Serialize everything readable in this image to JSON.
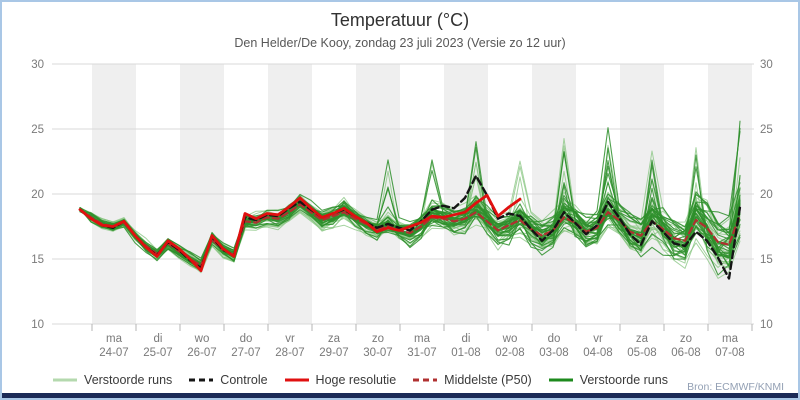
{
  "header": {
    "title": "Temperatuur (°C)",
    "subtitle": "Den Helder/De Kooy, zondag 23 juli 2023 (Versie zo 12 uur)"
  },
  "footer": {
    "source": "Bron: ECMWF/KNMI"
  },
  "legend": [
    {
      "label": "Verstoorde runs",
      "color": "#b4d9ae",
      "dash": false
    },
    {
      "label": "Controle",
      "color": "#151515",
      "dash": true
    },
    {
      "label": "Hoge resolutie",
      "color": "#e01010",
      "dash": false
    },
    {
      "label": "Middelste (P50)",
      "color": "#b03030",
      "dash": true
    },
    {
      "label": "Verstoorde runs",
      "color": "#1d8a1d",
      "dash": false
    }
  ],
  "chart_data": {
    "type": "line",
    "title": "Temperatuur (°C)",
    "subtitle": "Den Helder/De Kooy, zondag 23 juli 2023 (Versie zo 12 uur)",
    "ylabel": "",
    "ylim": [
      10,
      30
    ],
    "yticks": [
      10,
      15,
      20,
      25,
      30
    ],
    "grid": true,
    "legend_position": "bottom",
    "step_days": 0.25,
    "x_days": [
      {
        "dow": "ma",
        "date": "24-07"
      },
      {
        "dow": "di",
        "date": "25-07"
      },
      {
        "dow": "wo",
        "date": "26-07"
      },
      {
        "dow": "do",
        "date": "27-07"
      },
      {
        "dow": "vr",
        "date": "28-07"
      },
      {
        "dow": "za",
        "date": "29-07"
      },
      {
        "dow": "zo",
        "date": "30-07"
      },
      {
        "dow": "ma",
        "date": "31-07"
      },
      {
        "dow": "di",
        "date": "01-08"
      },
      {
        "dow": "wo",
        "date": "02-08"
      },
      {
        "dow": "do",
        "date": "03-08"
      },
      {
        "dow": "vr",
        "date": "04-08"
      },
      {
        "dow": "za",
        "date": "05-08"
      },
      {
        "dow": "zo",
        "date": "06-08"
      },
      {
        "dow": "ma",
        "date": "07-08"
      }
    ],
    "series": [
      {
        "name": "Controle",
        "color": "#151515",
        "dash": "7 4",
        "width": 2.4,
        "values": [
          18.8,
          18.1,
          17.6,
          17.4,
          17.9,
          16.8,
          15.9,
          15.3,
          16.3,
          15.7,
          14.9,
          14.3,
          16.7,
          15.7,
          15.3,
          18.2,
          18.0,
          18.4,
          18.3,
          18.9,
          19.4,
          18.8,
          18.2,
          18.5,
          18.8,
          18.3,
          17.8,
          17.4,
          17.7,
          17.4,
          17.2,
          17.9,
          18.8,
          19.1,
          18.9,
          19.7,
          21.4,
          19.9,
          18.1,
          18.5,
          18.3,
          17.3,
          16.4,
          17.2,
          18.6,
          17.8,
          16.9,
          17.6,
          19.4,
          18.2,
          16.9,
          16.1,
          17.9,
          17.1,
          16.2,
          16.0,
          17.1,
          16.4,
          15.1,
          13.5,
          19.0
        ]
      },
      {
        "name": "Hoge resolutie",
        "color": "#e01010",
        "dash": null,
        "width": 2.8,
        "values": [
          18.8,
          18.1,
          17.6,
          17.5,
          17.9,
          16.8,
          15.9,
          15.2,
          16.4,
          15.8,
          15.0,
          14.1,
          16.8,
          15.8,
          15.2,
          18.5,
          18.1,
          18.5,
          18.4,
          19.0,
          19.7,
          18.9,
          18.2,
          18.5,
          18.9,
          18.3,
          17.8,
          17.1,
          17.4,
          17.2,
          17.5,
          17.8,
          18.3,
          18.2,
          18.4,
          18.6,
          19.3,
          19.9,
          18.3,
          19.0,
          19.6
        ]
      },
      {
        "name": "Middelste (P50)",
        "color": "#b03030",
        "dash": "6 4",
        "width": 2.2,
        "values": [
          18.8,
          18.2,
          17.7,
          17.5,
          17.8,
          16.8,
          16.0,
          15.4,
          16.2,
          15.6,
          15.0,
          14.5,
          16.5,
          15.7,
          15.3,
          17.9,
          17.8,
          18.2,
          18.1,
          18.6,
          19.2,
          18.6,
          18.0,
          18.3,
          18.6,
          18.1,
          17.7,
          17.3,
          17.5,
          17.2,
          17.0,
          17.5,
          18.2,
          18.1,
          17.9,
          18.1,
          18.6,
          17.9,
          17.2,
          17.6,
          18.0,
          17.3,
          16.8,
          17.2,
          18.2,
          17.8,
          17.1,
          17.4,
          18.6,
          18.0,
          17.1,
          16.8,
          17.9,
          17.3,
          16.6,
          16.4,
          18.0,
          17.4,
          16.3,
          16.1,
          18.4
        ]
      }
    ],
    "ensemble": {
      "name": "Verstoorde runs",
      "count": 50,
      "seed": 11,
      "color_light": "#86c47f",
      "color_dark": "#2e8f2c",
      "sigma_base": 0.22,
      "sigma_growth": 0.75,
      "persistence": 0.85,
      "warm_bias": 2.2,
      "clamp": [
        12.8,
        26.0
      ],
      "start": 18.8,
      "forced_points": [
        {
          "member": 1,
          "i": 60,
          "v": 25.6
        },
        {
          "member": 3,
          "i": 36,
          "v": 23.6
        },
        {
          "member": 5,
          "i": 44,
          "v": 23.2
        },
        {
          "member": 7,
          "i": 48,
          "v": 25.1
        },
        {
          "member": 9,
          "i": 56,
          "v": 23.0
        },
        {
          "member": 11,
          "i": 60,
          "v": 24.8
        }
      ]
    },
    "style": {
      "band_color": "#efefef",
      "grid_color": "#d8d8d8",
      "tick_color": "#b5b5b5",
      "axis_text_color": "#7a7a7a"
    }
  }
}
